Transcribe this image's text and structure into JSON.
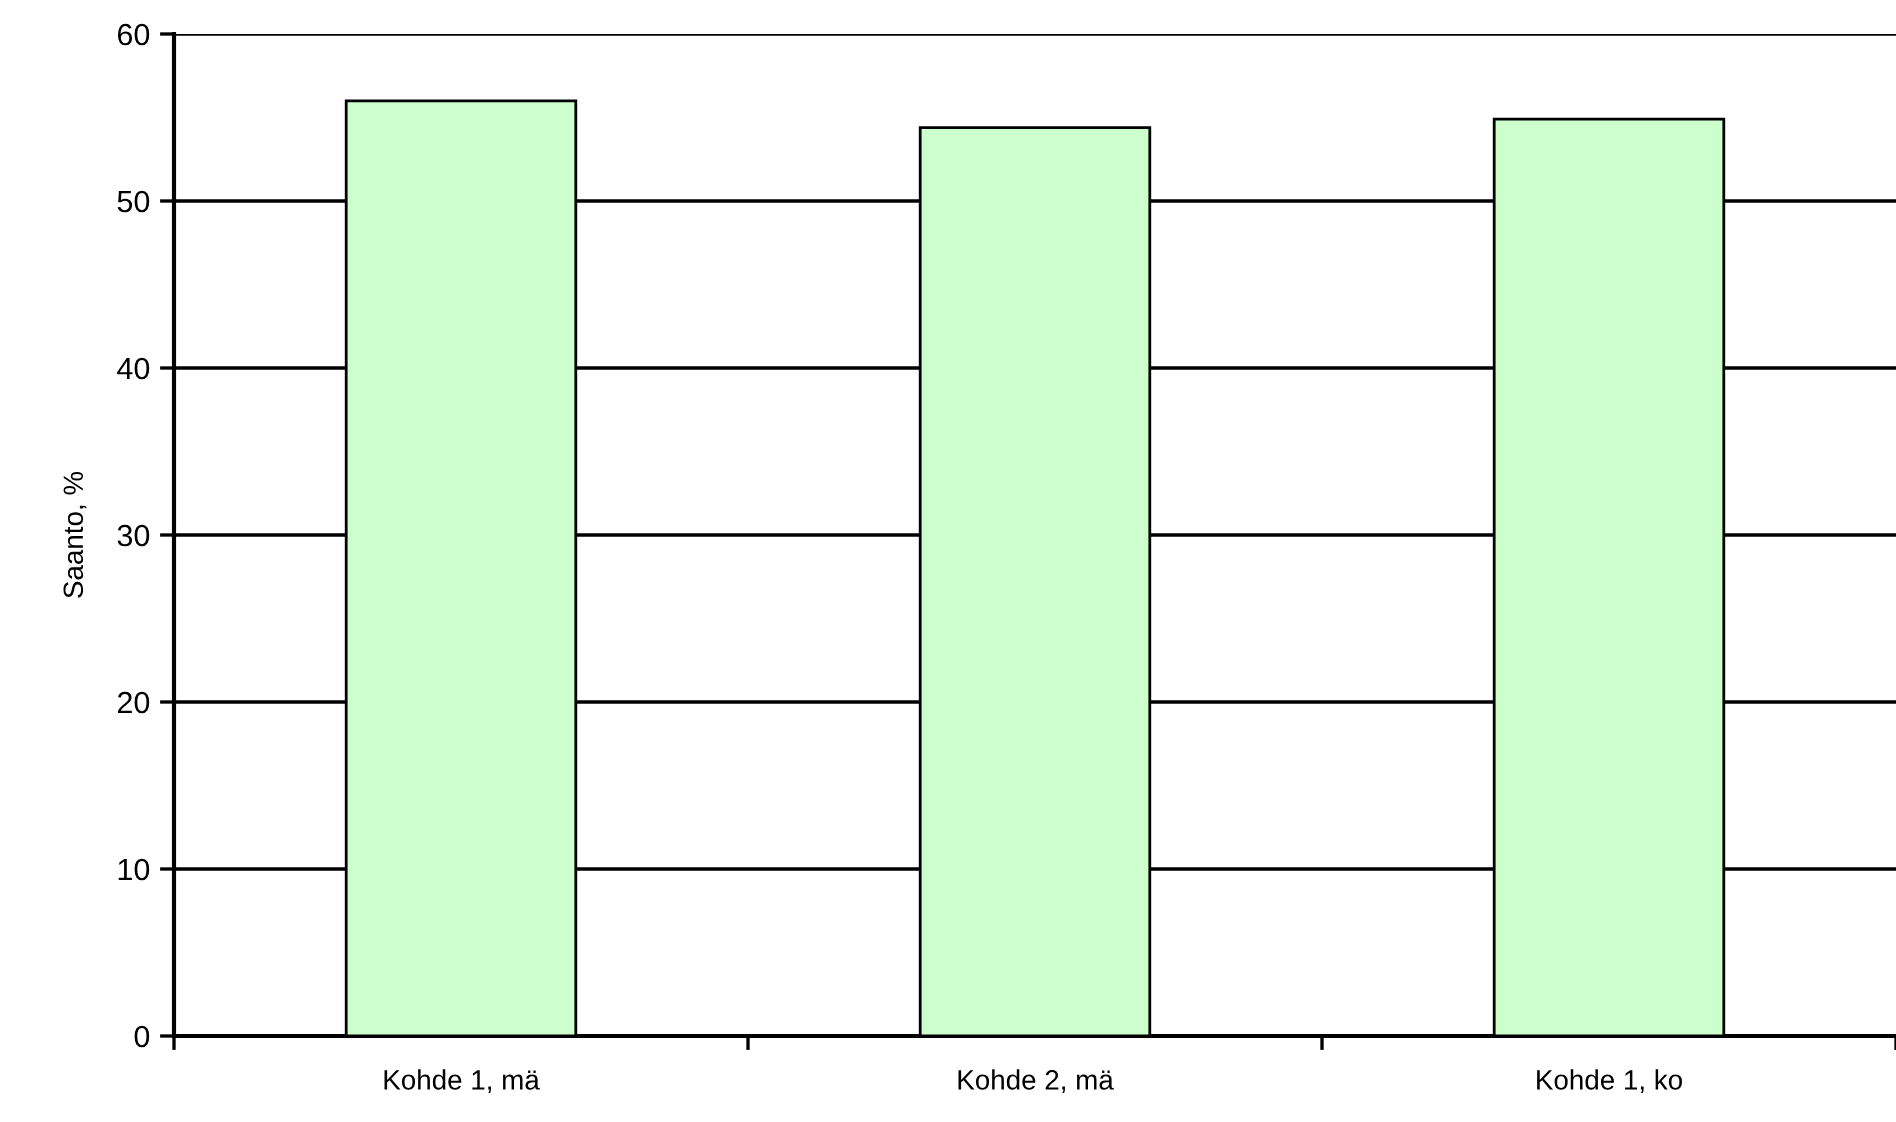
{
  "chart_data": {
    "type": "bar",
    "ylabel": "Saanto, %",
    "categories": [
      "Kohde 1, mä",
      "Kohde 2, mä",
      "Kohde 1, ko"
    ],
    "values": [
      56.0,
      54.4,
      54.9
    ],
    "color": "#ccffcc",
    "ylim": [
      0,
      60
    ],
    "yticks": [
      0,
      10,
      20,
      30,
      40,
      50,
      60
    ],
    "grid": "y",
    "legend": false
  }
}
